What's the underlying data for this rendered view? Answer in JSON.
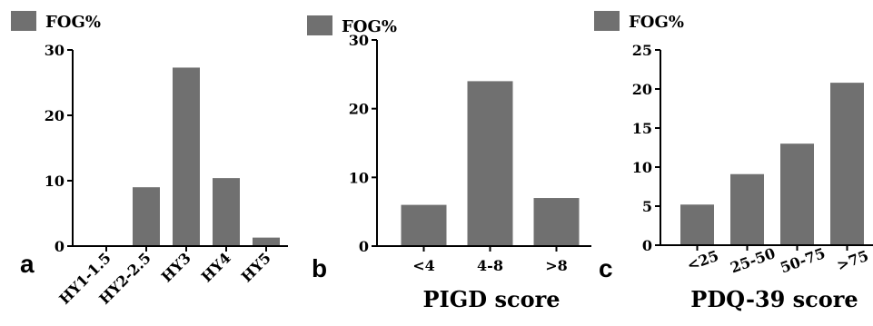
{
  "chart_data": [
    {
      "type": "bar",
      "panel_label": "a",
      "legend": "FOG%",
      "categories": [
        "HY1-1.5",
        "HY2-2.5",
        "HY3",
        "HY4",
        "HY5"
      ],
      "series": [
        {
          "name": "FOG%",
          "values": [
            0,
            9.0,
            27.3,
            10.4,
            1.3
          ]
        }
      ],
      "xlabel": "",
      "ylabel": "",
      "ylim": [
        0,
        30
      ],
      "yticks": [
        0,
        10,
        20,
        30
      ],
      "color": "#707070",
      "grid": false,
      "tick_rotation": "rotated",
      "legend_position": "top-left"
    },
    {
      "type": "bar",
      "panel_label": "b",
      "legend": "FOG%",
      "categories": [
        "<4",
        "4-8",
        ">8"
      ],
      "series": [
        {
          "name": "FOG%",
          "values": [
            6.0,
            24.0,
            7.0
          ]
        }
      ],
      "xlabel": "PIGD score",
      "ylabel": "",
      "ylim": [
        0,
        30
      ],
      "yticks": [
        0,
        10,
        20,
        30
      ],
      "color": "#707070",
      "grid": false,
      "tick_rotation": "horizontal",
      "legend_position": "top-left"
    },
    {
      "type": "bar",
      "panel_label": "c",
      "legend": "FOG%",
      "categories": [
        "<25",
        "25-50",
        "50-75",
        ">75"
      ],
      "series": [
        {
          "name": "FOG%",
          "values": [
            5.2,
            9.1,
            13.0,
            20.8
          ]
        }
      ],
      "xlabel": "PDQ-39 score",
      "ylabel": "",
      "ylim": [
        0,
        25
      ],
      "yticks": [
        0,
        5,
        10,
        15,
        20,
        25
      ],
      "color": "#707070",
      "grid": false,
      "tick_rotation": "slight",
      "legend_position": "top-left"
    }
  ]
}
